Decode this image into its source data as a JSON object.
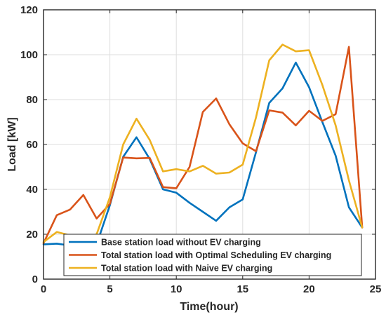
{
  "chart_data": {
    "type": "line",
    "xlabel": "Time(hour)",
    "ylabel": "Load [kW]",
    "xlim": [
      0,
      25
    ],
    "ylim": [
      0,
      120
    ],
    "xticks": [
      0,
      5,
      10,
      15,
      20,
      25
    ],
    "yticks": [
      0,
      20,
      40,
      60,
      80,
      100,
      120
    ],
    "grid": true,
    "legend_position": "bottom-left",
    "x": [
      0,
      1,
      2,
      3,
      4,
      5,
      6,
      7,
      8,
      9,
      10,
      11,
      12,
      13,
      14,
      15,
      16,
      17,
      18,
      19,
      20,
      21,
      22,
      23,
      24
    ],
    "series": [
      {
        "name": "Base station load without EV charging",
        "color": "#0072bd",
        "values": [
          15.5,
          15.8,
          15,
          14.5,
          15.5,
          33,
          54.5,
          63.2,
          53.5,
          40,
          38.5,
          34,
          30,
          26,
          32,
          35.5,
          56.5,
          78.5,
          85,
          96.5,
          85.5,
          70,
          55,
          32,
          23
        ]
      },
      {
        "name": "Total station load with Optimal Scheduling EV charging",
        "color": "#d95319",
        "values": [
          16,
          28.5,
          31,
          37.5,
          27,
          33.5,
          54.2,
          53.8,
          54,
          41,
          40.5,
          50,
          74.5,
          80.5,
          69,
          60.5,
          57,
          75.2,
          74.2,
          68.5,
          75,
          70.5,
          73.5,
          103.5,
          23
        ]
      },
      {
        "name": "Total station load with Naive EV charging",
        "color": "#edb120",
        "values": [
          16.5,
          21,
          19.5,
          18,
          20,
          36.5,
          60,
          71.5,
          62,
          48,
          49,
          48,
          50.5,
          47,
          47.5,
          51,
          72,
          97.5,
          104.5,
          101.5,
          102,
          86.5,
          68.5,
          44,
          23
        ]
      }
    ]
  }
}
